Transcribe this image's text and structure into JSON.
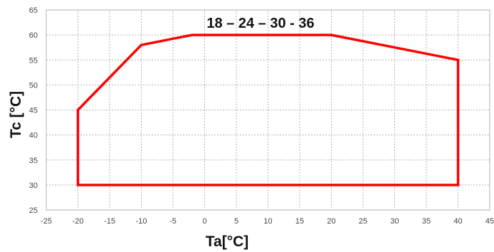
{
  "chart_data": {
    "type": "line",
    "title": "18 – 24 – 30 - 36",
    "xlabel": "Ta[°C]",
    "ylabel": "Tc [°C]",
    "xlim": [
      -25,
      45
    ],
    "ylim": [
      25,
      65
    ],
    "x_ticks": [
      -25,
      -20,
      -15,
      -10,
      -5,
      0,
      5,
      10,
      15,
      20,
      25,
      30,
      35,
      40,
      45
    ],
    "y_ticks": [
      25,
      30,
      35,
      40,
      45,
      50,
      55,
      60,
      65
    ],
    "x_tick_labels": [
      "-25",
      "-20",
      "-15",
      "-10",
      "-5",
      "0",
      "5",
      "10",
      "15",
      "20",
      "25",
      "30",
      "35",
      "40",
      "45"
    ],
    "y_tick_labels": [
      "25",
      "30",
      "35",
      "40",
      "45",
      "50",
      "55",
      "60",
      "65"
    ],
    "grid": true,
    "series": [
      {
        "color": "#ff0000",
        "closed": true,
        "points": [
          {
            "x": -20,
            "y": 30
          },
          {
            "x": -20,
            "y": 45
          },
          {
            "x": -10,
            "y": 58
          },
          {
            "x": -2,
            "y": 60
          },
          {
            "x": 20,
            "y": 60
          },
          {
            "x": 40,
            "y": 55
          },
          {
            "x": 40,
            "y": 30
          }
        ]
      }
    ]
  }
}
